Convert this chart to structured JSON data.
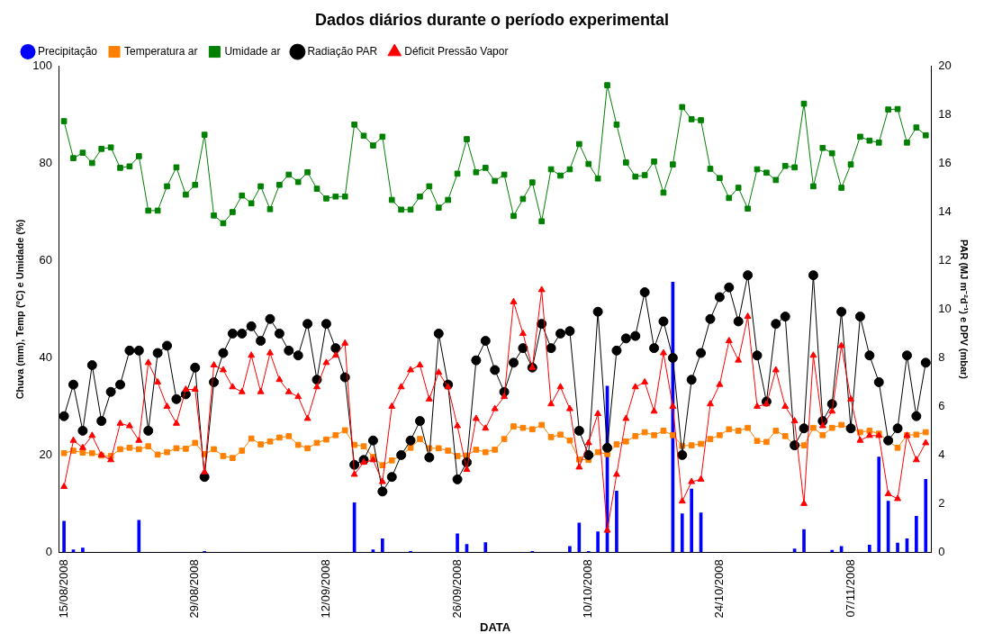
{
  "chart_data": {
    "type": "line",
    "title": "Dados diários durante o período experimental",
    "xlabel": "DATA",
    "ylabel": "Chuva (mm), Temp (°C) e Umidade (%)",
    "y2label": "PAR (MJ m⁻²d⁻¹) e DPV (mbar)",
    "x": [
      "2008-08-15",
      "2008-08-16",
      "2008-08-17",
      "2008-08-18",
      "2008-08-19",
      "2008-08-20",
      "2008-08-21",
      "2008-08-22",
      "2008-08-23",
      "2008-08-24",
      "2008-08-25",
      "2008-08-26",
      "2008-08-27",
      "2008-08-28",
      "2008-08-29",
      "2008-08-30",
      "2008-08-31",
      "2008-09-01",
      "2008-09-02",
      "2008-09-03",
      "2008-09-04",
      "2008-09-05",
      "2008-09-06",
      "2008-09-07",
      "2008-09-08",
      "2008-09-09",
      "2008-09-10",
      "2008-09-11",
      "2008-09-12",
      "2008-09-13",
      "2008-09-14",
      "2008-09-15",
      "2008-09-16",
      "2008-09-17",
      "2008-09-18",
      "2008-09-19",
      "2008-09-20",
      "2008-09-21",
      "2008-09-22",
      "2008-09-23",
      "2008-09-24",
      "2008-09-25",
      "2008-09-26",
      "2008-09-27",
      "2008-09-28",
      "2008-09-29",
      "2008-09-30",
      "2008-10-01",
      "2008-10-02",
      "2008-10-03",
      "2008-10-04",
      "2008-10-05",
      "2008-10-06",
      "2008-10-07",
      "2008-10-08",
      "2008-10-09",
      "2008-10-10",
      "2008-10-11",
      "2008-10-12",
      "2008-10-13",
      "2008-10-14",
      "2008-10-15",
      "2008-10-16",
      "2008-10-17",
      "2008-10-18",
      "2008-10-19",
      "2008-10-20",
      "2008-10-21",
      "2008-10-22",
      "2008-10-23",
      "2008-10-24",
      "2008-10-25",
      "2008-10-26",
      "2008-10-27",
      "2008-10-28",
      "2008-10-29",
      "2008-10-30",
      "2008-10-31",
      "2008-11-01",
      "2008-11-02",
      "2008-11-03",
      "2008-11-04",
      "2008-11-05",
      "2008-11-06",
      "2008-11-07",
      "2008-11-08",
      "2008-11-09",
      "2008-11-10",
      "2008-11-11",
      "2008-11-12",
      "2008-11-13",
      "2008-11-14",
      "2008-11-15"
    ],
    "xlim": [
      "2008-08-14T12:00",
      "2008-11-15T14:00"
    ],
    "xticks": [
      {
        "value": "2008-08-15",
        "label": "15/08/2008"
      },
      {
        "value": "2008-08-29",
        "label": "29/08/2008"
      },
      {
        "value": "2008-09-12",
        "label": "12/09/2008"
      },
      {
        "value": "2008-09-26",
        "label": "26/09/2008"
      },
      {
        "value": "2008-10-10",
        "label": "10/10/2008"
      },
      {
        "value": "2008-10-24",
        "label": "24/10/2008"
      },
      {
        "value": "2008-11-07",
        "label": "07/11/2008"
      }
    ],
    "ylim": [
      0,
      100
    ],
    "yticks": [
      0,
      20,
      40,
      60,
      80,
      100
    ],
    "y2lim": [
      0,
      20
    ],
    "y2ticks": [
      0,
      2,
      4,
      6,
      8,
      10,
      12,
      14,
      16,
      18,
      20
    ],
    "legend": "top left",
    "series": [
      {
        "name": "Precipitação",
        "type": "bar",
        "color": "#0000ff",
        "values": [
          6.4,
          0.5,
          0.9,
          0,
          0,
          0,
          0,
          0,
          6.6,
          0,
          0,
          0,
          0,
          0,
          0,
          0.2,
          0,
          0,
          0,
          0,
          0,
          0,
          0,
          0,
          0,
          0,
          0,
          0,
          0,
          0,
          0,
          10.2,
          0,
          0.5,
          2.8,
          0,
          0,
          0.2,
          0,
          0,
          0,
          0,
          3.8,
          1.6,
          0,
          2.0,
          0,
          0,
          0,
          0,
          0.2,
          0,
          0,
          0,
          1.2,
          6.0,
          0.2,
          4.2,
          34.2,
          12.6,
          0,
          0,
          0,
          0,
          0,
          55.6,
          7.9,
          13.0,
          8.1,
          0,
          0,
          0,
          0,
          0,
          0,
          0,
          0,
          0,
          0.7,
          4.7,
          0,
          0,
          0.4,
          1.2,
          0,
          0,
          1.5,
          19.6,
          10.5,
          1.9,
          2.8,
          7.4,
          15.0
        ]
      },
      {
        "name": "Temperatura ar",
        "marker": "square",
        "color": "#ff8000",
        "values": [
          20.4,
          20.9,
          20.5,
          20.4,
          19.9,
          19.8,
          21.2,
          21.5,
          21.2,
          21.8,
          20.1,
          20.6,
          21.4,
          21.3,
          22.5,
          20.2,
          21.2,
          19.8,
          19.4,
          20.9,
          23.4,
          22.2,
          22.8,
          23.6,
          23.9,
          22.1,
          21.4,
          22.5,
          23.2,
          24.1,
          25.1,
          22.1,
          21.8,
          19.6,
          17.9,
          18.9,
          19.9,
          21.5,
          23.3,
          21.4,
          21.4,
          20.9,
          19.8,
          19.9,
          21.1,
          20.6,
          21.1,
          23.3,
          25.9,
          25.6,
          25.3,
          26.2,
          23.7,
          24.2,
          23.0,
          19.1,
          19.0,
          20.6,
          20.2,
          22.2,
          22.8,
          23.9,
          24.7,
          24.1,
          25.0,
          24.1,
          21.9,
          22.0,
          22.3,
          23.3,
          24.1,
          25.3,
          25.0,
          25.6,
          22.9,
          22.7,
          25.0,
          23.9,
          22.0,
          22.0,
          25.6,
          24.1,
          25.6,
          26.2,
          25.6,
          24.7,
          25.0,
          24.4,
          22.9,
          21.5,
          24.1,
          24.2,
          24.7
        ]
      },
      {
        "name": "Umidade ar",
        "marker": "square",
        "color": "#008000",
        "values": [
          88.7,
          81.1,
          82.2,
          80.1,
          83.0,
          83.3,
          79.1,
          79.4,
          81.5,
          70.3,
          70.3,
          75.3,
          79.2,
          73.6,
          75.6,
          85.9,
          69.3,
          67.7,
          70.0,
          73.4,
          71.8,
          75.3,
          70.6,
          75.6,
          77.7,
          76.2,
          78.2,
          74.8,
          72.8,
          73.2,
          73.2,
          88.0,
          85.7,
          83.7,
          85.5,
          72.5,
          70.5,
          70.5,
          73.2,
          75.3,
          70.9,
          72.5,
          77.9,
          85.0,
          78.2,
          79.1,
          76.4,
          77.7,
          69.2,
          72.7,
          76.1,
          68.1,
          78.8,
          77.5,
          78.8,
          84.0,
          79.9,
          76.9,
          96.1,
          88.0,
          80.2,
          77.3,
          77.6,
          80.4,
          74.0,
          79.8,
          91.6,
          89.1,
          88.9,
          78.9,
          77.0,
          72.9,
          75.0,
          70.7,
          78.8,
          78.1,
          76.6,
          79.5,
          79.2,
          92.3,
          75.3,
          83.2,
          82.1,
          75.0,
          79.8,
          85.5,
          84.7,
          84.3,
          91.1,
          91.2,
          84.3,
          87.4,
          85.8
        ]
      },
      {
        "name": "Radiação PAR",
        "marker": "circle",
        "axis": "y2",
        "color": "#000000",
        "values": [
          5.6,
          6.9,
          5.0,
          7.7,
          5.4,
          6.6,
          6.9,
          8.3,
          8.3,
          5.0,
          8.2,
          8.5,
          6.3,
          6.5,
          7.6,
          3.1,
          7.0,
          8.2,
          9.0,
          9.0,
          9.3,
          8.7,
          9.6,
          9.0,
          8.3,
          8.1,
          9.4,
          7.1,
          9.4,
          8.4,
          7.2,
          3.6,
          3.8,
          4.6,
          2.5,
          3.1,
          4.0,
          4.6,
          5.4,
          3.9,
          9.0,
          6.9,
          3.0,
          3.7,
          7.9,
          8.7,
          7.5,
          6.6,
          7.8,
          8.4,
          7.6,
          9.4,
          8.4,
          9.0,
          9.1,
          5.0,
          4.0,
          9.9,
          4.3,
          8.3,
          8.8,
          8.9,
          10.7,
          8.4,
          9.5,
          8.0,
          4.0,
          7.1,
          8.2,
          9.6,
          10.5,
          10.9,
          9.5,
          11.4,
          8.1,
          6.2,
          9.4,
          9.7,
          4.4,
          5.1,
          11.4,
          5.4,
          6.1,
          9.9,
          5.1,
          9.7,
          8.1,
          7.0,
          4.6,
          5.1,
          8.1,
          5.6,
          7.8
        ]
      },
      {
        "name": "Déficit Pressão Vapor",
        "marker": "triangle",
        "axis": "y2",
        "color": "#ff0000",
        "values": [
          2.7,
          4.6,
          4.3,
          4.8,
          4.0,
          3.8,
          5.3,
          5.2,
          4.6,
          7.8,
          7.0,
          6.0,
          5.3,
          6.7,
          6.7,
          3.3,
          7.7,
          7.5,
          6.8,
          6.6,
          8.1,
          6.6,
          8.2,
          7.1,
          6.6,
          6.4,
          5.5,
          6.8,
          7.8,
          8.1,
          8.6,
          3.2,
          3.7,
          3.8,
          2.9,
          6.0,
          6.8,
          7.5,
          7.7,
          6.3,
          7.4,
          6.8,
          5.2,
          3.4,
          5.5,
          5.1,
          5.9,
          6.4,
          10.3,
          9.0,
          7.6,
          10.8,
          6.1,
          6.8,
          5.9,
          3.5,
          4.5,
          5.7,
          0.9,
          3.2,
          5.5,
          6.8,
          7.0,
          5.8,
          8.2,
          6.0,
          2.1,
          2.9,
          3.0,
          6.1,
          6.9,
          8.7,
          7.9,
          9.7,
          6.0,
          6.1,
          7.5,
          6.0,
          5.4,
          2.0,
          8.1,
          5.2,
          5.8,
          8.5,
          6.3,
          4.6,
          4.8,
          4.8,
          2.4,
          2.2,
          4.8,
          3.8,
          4.5
        ]
      }
    ]
  }
}
